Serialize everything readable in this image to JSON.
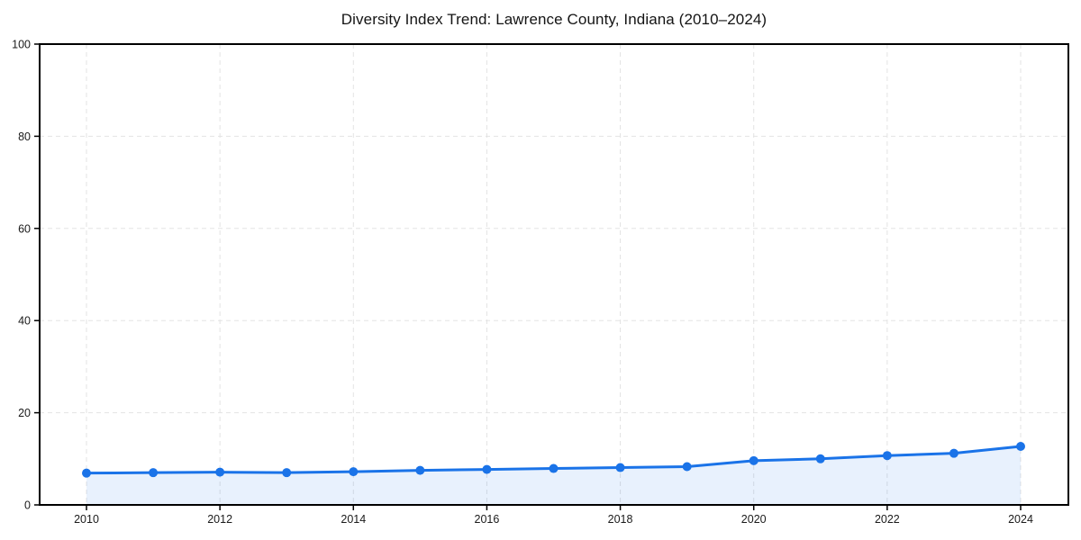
{
  "chart_data": {
    "type": "line",
    "title": "Diversity Index Trend: Lawrence County, Indiana (2010–2024)",
    "xlabel": "",
    "ylabel": "",
    "x": [
      2010,
      2011,
      2012,
      2013,
      2014,
      2015,
      2016,
      2017,
      2018,
      2019,
      2020,
      2021,
      2022,
      2023,
      2024
    ],
    "series": [
      {
        "name": "Diversity Index",
        "values": [
          6.9,
          7.0,
          7.1,
          7.0,
          7.2,
          7.5,
          7.7,
          7.9,
          8.1,
          8.3,
          9.6,
          10.0,
          10.7,
          11.2,
          12.7
        ]
      }
    ],
    "xticks": [
      2010,
      2012,
      2014,
      2016,
      2018,
      2020,
      2022,
      2024
    ],
    "yticks": [
      0,
      20,
      40,
      60,
      80,
      100
    ],
    "ylim": [
      0,
      100
    ],
    "grid": true,
    "grid_dashed": true,
    "legend": false,
    "markers": true,
    "area_fill": true,
    "style": {
      "line_color": "#1a73e8",
      "marker_color": "#1a73e8",
      "fill_color": "rgba(26, 115, 232, 0.10)",
      "grid_color": "#e3e3e3",
      "axis_color": "#000000",
      "text_color": "#1a1a1a",
      "background": "#ffffff"
    }
  }
}
